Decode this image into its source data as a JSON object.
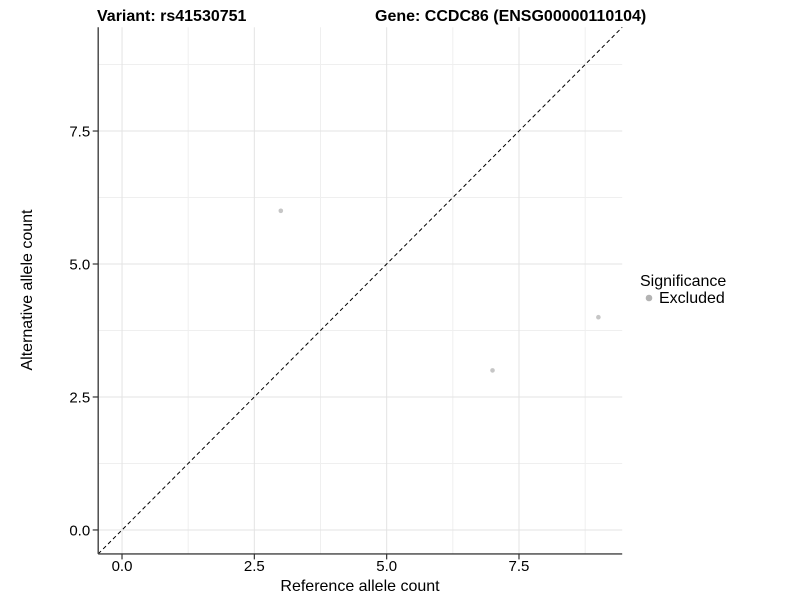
{
  "chart_data": {
    "type": "scatter",
    "titles": {
      "left": "Variant: rs41530751",
      "right": "Gene: CCDC86 (ENSG00000110104)"
    },
    "xlabel": "Reference allele count",
    "ylabel": "Alternative allele count",
    "xlim": [
      -0.45,
      9.45
    ],
    "ylim": [
      -0.45,
      9.45
    ],
    "x_ticks": {
      "values": [
        0,
        2.5,
        5,
        7.5
      ],
      "labels": [
        "0.0",
        "2.5",
        "5.0",
        "7.5"
      ]
    },
    "y_ticks": {
      "values": [
        0,
        2.5,
        5,
        7.5
      ],
      "labels": [
        "0.0",
        "2.5",
        "5.0",
        "7.5"
      ]
    },
    "x_minor_ticks": [
      1.25,
      3.75,
      6.25,
      8.75
    ],
    "y_minor_ticks": [
      1.25,
      3.75,
      6.25,
      8.75
    ],
    "grid": true,
    "series": [
      {
        "name": "Excluded",
        "points": [
          {
            "x": 3,
            "y": 6
          },
          {
            "x": 7,
            "y": 3
          },
          {
            "x": 9,
            "y": 4
          }
        ]
      }
    ],
    "reference_line": {
      "type": "identity",
      "slope": 1,
      "intercept": 0,
      "style": "dashed"
    },
    "legend": {
      "title": "Significance",
      "position": "right",
      "items": [
        {
          "label": "Excluded",
          "color": "#b3b3b3"
        }
      ]
    },
    "colors": {
      "point": "#c6c6c6",
      "legend_point": "#b3b3b3",
      "grid_major": "#e3e3e3",
      "grid_minor": "#efefef",
      "axis": "#404040",
      "tick": "#333333",
      "tick_text": "#303030",
      "identity_line": "#000000",
      "background": "#ffffff"
    }
  }
}
